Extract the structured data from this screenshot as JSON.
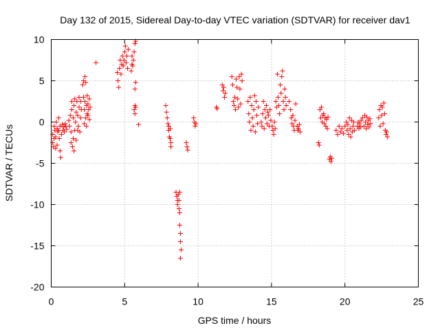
{
  "chart_data": {
    "type": "scatter",
    "title": "Day 132 of 2015, Sidereal Day-to-day VTEC variation (SDTVAR) for receiver dav1",
    "xlabel": "GPS time / hours",
    "ylabel": "SDTVAR / TECUs",
    "xlim": [
      0,
      25
    ],
    "ylim": [
      -20,
      10
    ],
    "xticks": [
      0,
      5,
      10,
      15,
      20,
      25
    ],
    "yticks": [
      -20,
      -15,
      -10,
      -5,
      0,
      5,
      10
    ],
    "xtick_labels": [
      "0",
      "5",
      "10",
      "15",
      "20",
      "25"
    ],
    "ytick_labels": [
      "-20",
      "-15",
      "-10",
      "-5",
      "0",
      "5",
      "10"
    ],
    "grid": true,
    "marker": "+",
    "marker_color": "#ff0000",
    "series": [
      {
        "name": "SDTVAR",
        "points": [
          [
            0.1,
            -1.5
          ],
          [
            0.1,
            -2.5
          ],
          [
            0.15,
            -3.0
          ],
          [
            0.2,
            -0.5
          ],
          [
            0.2,
            -2.0
          ],
          [
            0.25,
            -1.0
          ],
          [
            0.3,
            -1.8
          ],
          [
            0.3,
            -3.2
          ],
          [
            0.35,
            0.0
          ],
          [
            0.4,
            -0.8
          ],
          [
            0.4,
            -2.8
          ],
          [
            0.45,
            -1.2
          ],
          [
            0.5,
            0.5
          ],
          [
            0.5,
            -1.0
          ],
          [
            0.55,
            -2.0
          ],
          [
            0.6,
            -0.5
          ],
          [
            0.6,
            -3.5
          ],
          [
            0.65,
            -4.3
          ],
          [
            0.7,
            -1.5
          ],
          [
            0.75,
            -0.3
          ],
          [
            0.8,
            -1.0
          ],
          [
            0.85,
            -0.6
          ],
          [
            0.9,
            -1.2
          ],
          [
            0.95,
            -0.2
          ],
          [
            1.0,
            -0.5
          ],
          [
            1.05,
            -0.9
          ],
          [
            1.2,
            0.2
          ],
          [
            1.25,
            -0.5
          ],
          [
            1.3,
            0.8
          ],
          [
            1.35,
            -1.2
          ],
          [
            1.35,
            -2.5
          ],
          [
            1.4,
            1.5
          ],
          [
            1.4,
            2.5
          ],
          [
            1.45,
            -3.0
          ],
          [
            1.5,
            -2.0
          ],
          [
            1.5,
            0.5
          ],
          [
            1.55,
            2.0
          ],
          [
            1.55,
            -3.5
          ],
          [
            1.6,
            -1.0
          ],
          [
            1.6,
            2.8
          ],
          [
            1.65,
            0.0
          ],
          [
            1.7,
            -2.2
          ],
          [
            1.7,
            1.2
          ],
          [
            1.75,
            2.5
          ],
          [
            1.8,
            -1.0
          ],
          [
            1.8,
            0.8
          ],
          [
            1.85,
            -0.5
          ],
          [
            1.9,
            1.8
          ],
          [
            1.9,
            3.0
          ],
          [
            1.95,
            -1.2
          ],
          [
            2.0,
            2.5
          ],
          [
            2.0,
            0.5
          ],
          [
            2.05,
            1.5
          ],
          [
            2.15,
            4.5
          ],
          [
            2.2,
            5.0
          ],
          [
            2.2,
            3.0
          ],
          [
            2.25,
            -0.2
          ],
          [
            2.25,
            1.5
          ],
          [
            2.3,
            5.5
          ],
          [
            2.3,
            2.5
          ],
          [
            2.35,
            0.5
          ],
          [
            2.35,
            4.8
          ],
          [
            2.4,
            -0.5
          ],
          [
            2.4,
            2.0
          ],
          [
            2.45,
            1.0
          ],
          [
            2.45,
            3.2
          ],
          [
            2.5,
            0.8
          ],
          [
            2.5,
            2.2
          ],
          [
            2.55,
            1.5
          ],
          [
            2.6,
            0.3
          ],
          [
            2.6,
            2.8
          ],
          [
            2.65,
            1.8
          ],
          [
            3.05,
            7.2
          ],
          [
            4.5,
            6.0
          ],
          [
            4.55,
            5.0
          ],
          [
            4.6,
            4.2
          ],
          [
            4.65,
            6.5
          ],
          [
            4.7,
            7.5
          ],
          [
            4.75,
            5.8
          ],
          [
            4.8,
            7.0
          ],
          [
            4.85,
            8.0
          ],
          [
            4.9,
            6.8
          ],
          [
            4.95,
            7.5
          ],
          [
            5.0,
            8.5
          ],
          [
            5.05,
            9.2
          ],
          [
            5.1,
            7.2
          ],
          [
            5.15,
            8.0
          ],
          [
            5.2,
            6.5
          ],
          [
            5.25,
            8.8
          ],
          [
            5.45,
            6.2
          ],
          [
            5.5,
            7.0
          ],
          [
            5.5,
            8.0
          ],
          [
            5.55,
            6.8
          ],
          [
            5.6,
            7.5
          ],
          [
            5.65,
            8.5
          ],
          [
            5.7,
            9.5
          ],
          [
            5.75,
            9.8
          ],
          [
            5.75,
            4.8
          ],
          [
            5.7,
            4.0
          ],
          [
            5.65,
            1.5
          ],
          [
            5.7,
            1.0
          ],
          [
            5.75,
            1.8
          ],
          [
            5.7,
            2.0
          ],
          [
            5.95,
            -0.3
          ],
          [
            7.8,
            2.0
          ],
          [
            7.85,
            1.2
          ],
          [
            7.9,
            0.5
          ],
          [
            7.95,
            -0.2
          ],
          [
            8.0,
            -0.5
          ],
          [
            8.0,
            -1.0
          ],
          [
            8.05,
            -1.8
          ],
          [
            8.1,
            -2.0
          ],
          [
            8.15,
            -2.5
          ],
          [
            8.15,
            -3.0
          ],
          [
            8.1,
            -0.8
          ],
          [
            8.5,
            -8.5
          ],
          [
            8.55,
            -9.0
          ],
          [
            8.6,
            -9.5
          ],
          [
            8.6,
            -10.0
          ],
          [
            8.65,
            -8.8
          ],
          [
            8.7,
            -10.5
          ],
          [
            8.75,
            -11.0
          ],
          [
            8.75,
            -12.5
          ],
          [
            8.8,
            -13.5
          ],
          [
            8.8,
            -14.5
          ],
          [
            8.85,
            -15.5
          ],
          [
            8.8,
            -16.5
          ],
          [
            8.7,
            -9.5
          ],
          [
            8.75,
            -8.5
          ],
          [
            9.2,
            -2.5
          ],
          [
            9.25,
            -3.0
          ],
          [
            9.3,
            -3.4
          ],
          [
            9.7,
            0.5
          ],
          [
            9.75,
            0.0
          ],
          [
            9.8,
            -0.5
          ],
          [
            9.85,
            -0.2
          ],
          [
            11.25,
            1.8
          ],
          [
            11.3,
            1.6
          ],
          [
            11.65,
            4.5
          ],
          [
            11.7,
            3.8
          ],
          [
            11.75,
            4.2
          ],
          [
            11.8,
            3.0
          ],
          [
            11.85,
            3.5
          ],
          [
            12.3,
            5.5
          ],
          [
            12.35,
            4.5
          ],
          [
            12.4,
            2.5
          ],
          [
            12.45,
            2.0
          ],
          [
            12.5,
            3.0
          ],
          [
            12.55,
            1.5
          ],
          [
            12.6,
            5.2
          ],
          [
            12.65,
            4.2
          ],
          [
            12.7,
            2.8
          ],
          [
            12.75,
            1.8
          ],
          [
            12.8,
            5.5
          ],
          [
            12.85,
            4.0
          ],
          [
            12.9,
            2.2
          ],
          [
            12.95,
            5.8
          ],
          [
            13.0,
            5.0
          ],
          [
            13.4,
            2.5
          ],
          [
            13.45,
            1.0
          ],
          [
            13.5,
            0.0
          ],
          [
            13.55,
            3.0
          ],
          [
            13.6,
            -1.0
          ],
          [
            13.65,
            2.0
          ],
          [
            13.7,
            0.5
          ],
          [
            13.75,
            -0.5
          ],
          [
            13.8,
            1.5
          ],
          [
            13.85,
            3.2
          ],
          [
            13.9,
            -1.2
          ],
          [
            13.95,
            2.5
          ],
          [
            14.0,
            0.8
          ],
          [
            14.05,
            -0.2
          ],
          [
            14.1,
            1.8
          ],
          [
            14.3,
            0.0
          ],
          [
            14.35,
            -0.5
          ],
          [
            14.4,
            1.0
          ],
          [
            14.45,
            2.5
          ],
          [
            14.5,
            -0.8
          ],
          [
            14.55,
            1.5
          ],
          [
            14.6,
            0.5
          ],
          [
            14.65,
            2.0
          ],
          [
            14.7,
            -0.2
          ],
          [
            14.75,
            1.2
          ],
          [
            14.8,
            0.8
          ],
          [
            14.85,
            -0.5
          ],
          [
            14.9,
            1.5
          ],
          [
            14.95,
            0.2
          ],
          [
            15.05,
            -0.5
          ],
          [
            15.1,
            -1.0
          ],
          [
            15.15,
            -1.5
          ],
          [
            15.2,
            0.0
          ],
          [
            15.25,
            -0.8
          ],
          [
            15.3,
            2.5
          ],
          [
            15.35,
            1.8
          ],
          [
            15.4,
            5.8
          ],
          [
            15.45,
            3.0
          ],
          [
            15.5,
            2.0
          ],
          [
            15.55,
            1.0
          ],
          [
            15.6,
            4.5
          ],
          [
            15.65,
            3.5
          ],
          [
            15.7,
            5.5
          ],
          [
            15.75,
            6.2
          ],
          [
            15.8,
            2.5
          ],
          [
            15.85,
            1.5
          ],
          [
            15.9,
            4.0
          ],
          [
            15.95,
            3.0
          ],
          [
            16.0,
            2.0
          ],
          [
            16.2,
            2.5
          ],
          [
            16.3,
            1.5
          ],
          [
            16.35,
            0.5
          ],
          [
            16.4,
            -0.2
          ],
          [
            16.45,
            0.8
          ],
          [
            16.5,
            -0.5
          ],
          [
            16.55,
            -1.0
          ],
          [
            16.6,
            0.2
          ],
          [
            16.65,
            2.2
          ],
          [
            16.75,
            -0.5
          ],
          [
            16.8,
            -1.0
          ],
          [
            16.85,
            -0.8
          ],
          [
            16.9,
            -0.3
          ],
          [
            16.95,
            -1.2
          ],
          [
            18.2,
            -2.5
          ],
          [
            18.25,
            -2.8
          ],
          [
            18.3,
            1.5
          ],
          [
            18.35,
            0.5
          ],
          [
            18.4,
            1.8
          ],
          [
            18.45,
            0.0
          ],
          [
            18.5,
            0.8
          ],
          [
            18.55,
            1.0
          ],
          [
            18.6,
            -0.2
          ],
          [
            18.65,
            0.5
          ],
          [
            18.7,
            -0.5
          ],
          [
            18.75,
            0.3
          ],
          [
            18.8,
            -0.8
          ],
          [
            18.85,
            0.6
          ],
          [
            18.95,
            -4.5
          ],
          [
            19.0,
            -4.2
          ],
          [
            19.05,
            -4.8
          ],
          [
            19.1,
            -4.4
          ],
          [
            19.4,
            -1.0
          ],
          [
            19.5,
            -1.5
          ],
          [
            19.6,
            -0.5
          ],
          [
            19.7,
            -1.2
          ],
          [
            19.8,
            -0.8
          ],
          [
            19.9,
            -1.4
          ],
          [
            20.0,
            -0.5
          ],
          [
            20.1,
            0.0
          ],
          [
            20.15,
            -1.0
          ],
          [
            20.2,
            -0.3
          ],
          [
            20.25,
            -1.5
          ],
          [
            20.3,
            0.5
          ],
          [
            20.35,
            -0.8
          ],
          [
            20.4,
            -1.8
          ],
          [
            20.45,
            0.2
          ],
          [
            20.5,
            -1.2
          ],
          [
            20.55,
            -0.5
          ],
          [
            20.6,
            0.0
          ],
          [
            20.65,
            -1.0
          ],
          [
            20.85,
            -0.5
          ],
          [
            20.9,
            0.0
          ],
          [
            20.95,
            -0.8
          ],
          [
            21.0,
            -0.2
          ],
          [
            21.05,
            -0.6
          ],
          [
            21.1,
            0.2
          ],
          [
            21.2,
            0.5
          ],
          [
            21.3,
            -0.5
          ],
          [
            21.35,
            0.8
          ],
          [
            21.4,
            0.0
          ],
          [
            21.45,
            -0.8
          ],
          [
            21.5,
            0.6
          ],
          [
            21.55,
            -0.3
          ],
          [
            21.6,
            0.2
          ],
          [
            21.65,
            -0.6
          ],
          [
            21.7,
            0.4
          ],
          [
            21.75,
            -0.2
          ],
          [
            22.3,
            0.5
          ],
          [
            22.35,
            1.5
          ],
          [
            22.4,
            -0.5
          ],
          [
            22.45,
            2.0
          ],
          [
            22.5,
            0.8
          ],
          [
            22.55,
            1.8
          ],
          [
            22.6,
            -0.2
          ],
          [
            22.65,
            2.3
          ],
          [
            22.7,
            1.0
          ],
          [
            22.75,
            -1.0
          ],
          [
            22.8,
            -1.5
          ],
          [
            22.85,
            -1.2
          ],
          [
            22.9,
            -1.8
          ]
        ]
      }
    ]
  }
}
